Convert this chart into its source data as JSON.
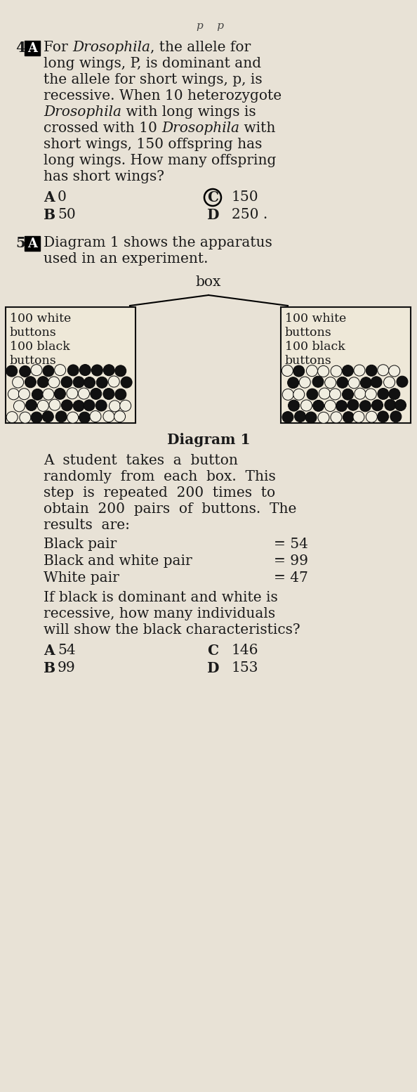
{
  "page_bg": "#e8e2d6",
  "text_color": "#1a1a1a",
  "q4_number": "4",
  "q5_number": "5",
  "handwritten_top": "p    p",
  "q4_lines": [
    [
      "For ",
      "i",
      "Drosophila",
      "n",
      ", the allele for"
    ],
    [
      "long wings, P, is dominant and"
    ],
    [
      "the allele for short wings, p, is"
    ],
    [
      "recessive. When 10 heterozygote"
    ],
    [
      "i",
      "Drosophila",
      "n",
      " with long wings is"
    ],
    [
      "crossed with 10 ",
      "i",
      "Drosophila",
      "n",
      " with"
    ],
    [
      "short wings, 150 offspring has"
    ],
    [
      "long wings. How many offspring"
    ],
    [
      "has short wings?"
    ]
  ],
  "q4_opt_a": "0",
  "q4_opt_b": "50",
  "q4_opt_c": "150",
  "q4_opt_d": "250",
  "q5_line1": "Diagram 1 shows the apparatus",
  "q5_line2": "used in an experiment.",
  "box_label": "box",
  "box1_text": [
    "100 white",
    "buttons",
    "100 black",
    "buttons"
  ],
  "box2_text": [
    "100 white",
    "buttons",
    "100 black",
    "buttons"
  ],
  "diagram_label": "Diagram 1",
  "body_lines": [
    "A  student  takes  a  button",
    "randomly  from  each  box.  This",
    "step  is  repeated  200  times  to",
    "obtain  200  pairs  of  buttons.  The",
    "results  are:"
  ],
  "result1_label": "Black pair",
  "result1_val": "= 54",
  "result2_label": "Black and white pair",
  "result2_val": "= 99",
  "result3_label": "White pair",
  "result3_val": "= 47",
  "q5_final": [
    "If black is dominant and white is",
    "recessive, how many individuals",
    "will show the black characteristics?"
  ],
  "q5_opt_a": "54",
  "q5_opt_b": "99",
  "q5_opt_c": "146",
  "q5_opt_d": "153"
}
